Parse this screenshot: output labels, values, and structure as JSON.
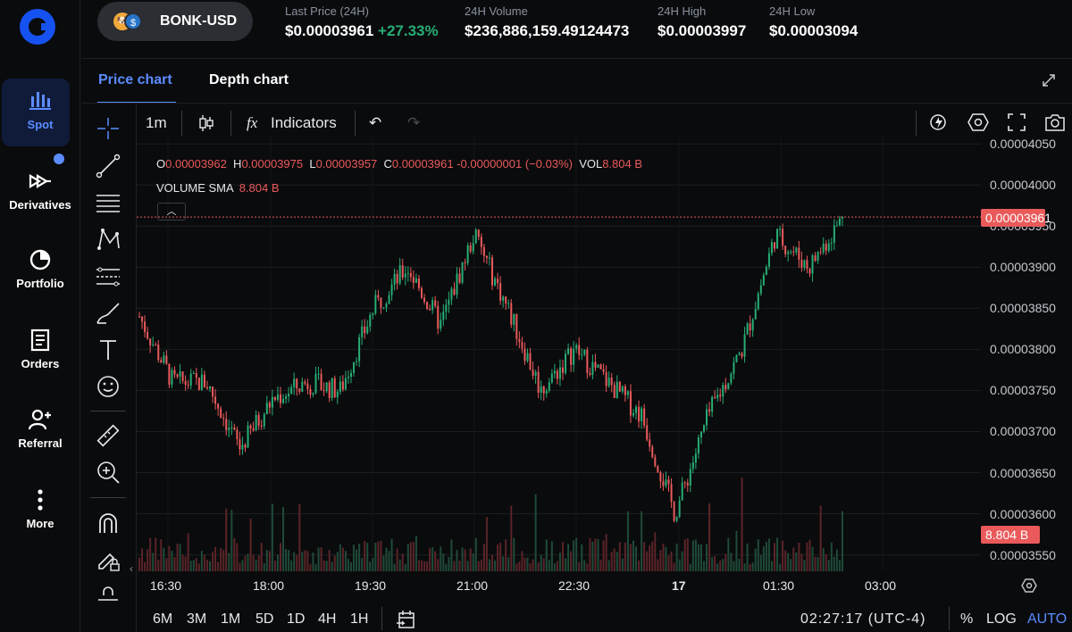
{
  "nav": {
    "items": [
      {
        "label": "Spot",
        "icon": "spot-chart-icon",
        "active": true
      },
      {
        "label": "Derivatives",
        "icon": "derivatives-icon",
        "badge": true
      },
      {
        "label": "Portfolio",
        "icon": "pie-chart-icon"
      },
      {
        "label": "Orders",
        "icon": "document-icon"
      },
      {
        "label": "Referral",
        "icon": "add-user-icon"
      },
      {
        "label": "More",
        "icon": "more-vertical-icon"
      }
    ]
  },
  "header": {
    "pair": "BONK-USD",
    "coin_badge": "$",
    "last_price_label": "Last Price (24H)",
    "last_price": "$0.00003961",
    "change": "+27.33%",
    "volume_label": "24H Volume",
    "volume": "$236,886,159.49124473",
    "high_label": "24H High",
    "high": "$0.00003997",
    "low_label": "24H Low",
    "low": "$0.00003094"
  },
  "tabs": {
    "price": "Price chart",
    "depth": "Depth chart"
  },
  "toolbar": {
    "interval": "1m",
    "indicators": "Indicators"
  },
  "legend": {
    "o_label": "O",
    "o": "0.00003962",
    "h_label": "H",
    "h": "0.00003975",
    "l_label": "L",
    "l": "0.00003957",
    "c_label": "C",
    "c": "0.00003961",
    "change": "-0.00000001 (−0.03%)",
    "vol_label": "VOL",
    "vol": "8.804 B",
    "sma_label": "VOLUME SMA",
    "sma": "8.804 B"
  },
  "price_axis": {
    "ticks": [
      "0.00004050",
      "0.00004000",
      "0.00003950",
      "0.00003900",
      "0.00003850",
      "0.00003800",
      "0.00003750",
      "0.00003700",
      "0.00003650",
      "0.00003600",
      "0.00003550"
    ],
    "current_price": "0.00003961",
    "current_volume": "8.804 B"
  },
  "time_axis": {
    "ticks": [
      "16:30",
      "18:00",
      "19:30",
      "21:00",
      "22:30",
      "17",
      "01:30",
      "03:00"
    ]
  },
  "bottom": {
    "ranges": [
      "6M",
      "3M",
      "1M",
      "5D",
      "1D",
      "4H",
      "1H"
    ],
    "clock": "02:27:17 (UTC-4)",
    "percent": "%",
    "log": "LOG",
    "auto": "AUTO"
  },
  "chart_data": {
    "type": "candlestick",
    "interval": "1m",
    "x": [
      "16:00",
      "16:30",
      "17:00",
      "17:30",
      "18:00",
      "18:30",
      "19:00",
      "19:30",
      "20:00",
      "20:30",
      "21:00",
      "21:30",
      "22:00",
      "22:30",
      "23:00",
      "23:30",
      "00:00",
      "00:30",
      "01:00",
      "01:30",
      "02:00",
      "02:27"
    ],
    "close": [
      3.84e-05,
      3.76e-05,
      3.76e-05,
      3.68e-05,
      3.74e-05,
      3.76e-05,
      3.75e-05,
      3.85e-05,
      3.9e-05,
      3.83e-05,
      3.94e-05,
      3.85e-05,
      3.75e-05,
      3.8e-05,
      3.76e-05,
      3.72e-05,
      3.6e-05,
      3.72e-05,
      3.8e-05,
      3.94e-05,
      3.9e-05,
      3.96e-05
    ],
    "ylim": [
      3.53e-05,
      4.06e-05
    ],
    "grid": true,
    "current_price": 3.961e-05
  }
}
